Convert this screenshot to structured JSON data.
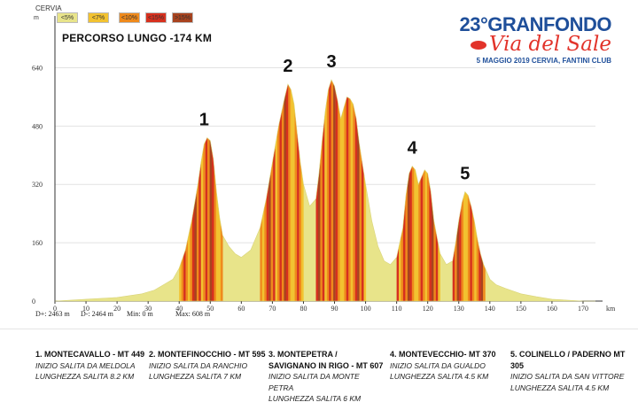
{
  "header": {
    "start_town": "CERVIA",
    "y_unit": "m",
    "route_title": "PERCORSO LUNGO -174 KM",
    "brand_line1": "23°GRANFONDO",
    "brand_line2": "Via del Sale",
    "brand_line3": "5 MAGGIO 2019 CERVIA, FANTINI CLUB"
  },
  "legend": [
    {
      "label": "<5%",
      "color": "#e8e48a"
    },
    {
      "label": "<7%",
      "color": "#f2c230"
    },
    {
      "label": "<10%",
      "color": "#ef8a1c"
    },
    {
      "label": "<15%",
      "color": "#d6301e"
    },
    {
      "label": ">15%",
      "color": "#a8431f"
    }
  ],
  "stats": {
    "dplus": "D+: 2463 m",
    "dminus": "D-: 2464 m",
    "min": "Min: 0 m",
    "max": "Max: 608 m"
  },
  "chart_data": {
    "type": "area",
    "title": "PERCORSO LUNGO -174 KM",
    "xlabel": "km",
    "ylabel": "m",
    "xlim": [
      0,
      174
    ],
    "ylim": [
      0,
      680
    ],
    "xticks": [
      0,
      10,
      20,
      30,
      40,
      50,
      60,
      70,
      80,
      90,
      100,
      110,
      120,
      130,
      140,
      150,
      160,
      170
    ],
    "yticks": [
      0,
      160,
      320,
      480,
      640
    ],
    "x": [
      0,
      10,
      20,
      28,
      32,
      35,
      38,
      40,
      42,
      44,
      46,
      47,
      48,
      49,
      50,
      51,
      52,
      53,
      54,
      56,
      58,
      60,
      63,
      66,
      68,
      70,
      72,
      74,
      75,
      76,
      77,
      78,
      79,
      80,
      82,
      84,
      85,
      86,
      87,
      88,
      89,
      90,
      91,
      92,
      93,
      94,
      95,
      96,
      97,
      98,
      100,
      102,
      104,
      106,
      108,
      110,
      112,
      113,
      114,
      115,
      116,
      117,
      118,
      119,
      120,
      121,
      122,
      124,
      126,
      128,
      129,
      130,
      131,
      132,
      133,
      134,
      135,
      136,
      137,
      138,
      140,
      142,
      145,
      150,
      155,
      160,
      170,
      174
    ],
    "y": [
      0,
      5,
      10,
      20,
      30,
      45,
      60,
      90,
      140,
      220,
      320,
      380,
      430,
      448,
      440,
      390,
      300,
      230,
      180,
      150,
      130,
      120,
      140,
      200,
      280,
      380,
      480,
      560,
      595,
      580,
      540,
      460,
      380,
      320,
      260,
      280,
      350,
      440,
      520,
      580,
      607,
      590,
      550,
      500,
      530,
      560,
      555,
      540,
      500,
      430,
      320,
      220,
      150,
      110,
      100,
      120,
      200,
      290,
      350,
      370,
      360,
      320,
      340,
      360,
      350,
      300,
      220,
      130,
      100,
      110,
      160,
      220,
      270,
      300,
      290,
      260,
      220,
      170,
      130,
      100,
      60,
      45,
      35,
      20,
      12,
      5,
      0,
      0
    ],
    "climb_markers": [
      {
        "label": "1",
        "km": 48
      },
      {
        "label": "2",
        "km": 75
      },
      {
        "label": "3",
        "km": 89
      },
      {
        "label": "4",
        "km": 115
      },
      {
        "label": "5",
        "km": 132
      }
    ],
    "climb_bands": [
      [
        40,
        54
      ],
      [
        66,
        80
      ],
      [
        84,
        100
      ],
      [
        110,
        124
      ],
      [
        128,
        138
      ]
    ]
  },
  "climbs": [
    {
      "title": "1. MONTECAVALLO - MT 449",
      "start": "INIZIO SALITA DA MELDOLA",
      "length": "LUNGHEZZA SALITA 8.2 KM"
    },
    {
      "title": "2. MONTEFINOCCHIO - MT 595",
      "start": "INIZIO SALITA DA RANCHIO",
      "length": "LUNGHEZZA SALITA 7 KM"
    },
    {
      "title": "3. MONTEPETRA / SAVIGNANO IN RIGO - MT 607",
      "start": "INIZIO SALITA DA MONTE PETRA",
      "length": "LUNGHEZZA SALITA 6 KM"
    },
    {
      "title": "4. MONTEVECCHIO- MT 370",
      "start": "INIZIO SALITA DA GUALDO",
      "length": "LUNGHEZZA SALITA 4.5 KM"
    },
    {
      "title": "5. COLINELLO / PADERNO MT 305",
      "start": "INIZIO SALITA DA SAN VITTORE",
      "length": "LUNGHEZZA SALITA 4.5 KM"
    }
  ]
}
